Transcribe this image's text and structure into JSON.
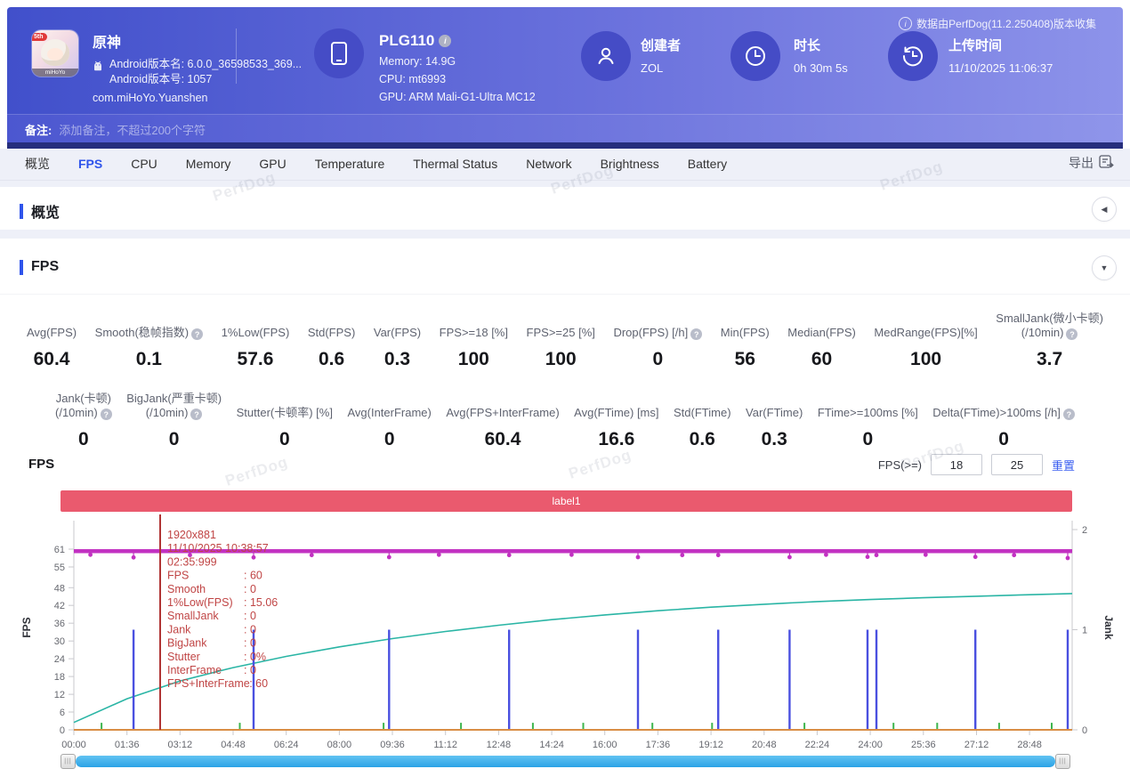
{
  "header": {
    "game": {
      "title": "原神",
      "line1": "Android版本名: 6.0.0_36598533_369...",
      "line2": "Android版本号: 1057",
      "package": "com.miHoYo.Yuanshen",
      "badge": "5th",
      "brand": "miHoYo"
    },
    "device": {
      "name": "PLG110",
      "memory": "Memory: 14.9G",
      "cpu": "CPU: mt6993",
      "gpu": "GPU: ARM Mali-G1-Ultra MC12"
    },
    "creator": {
      "label": "创建者",
      "value": "ZOL"
    },
    "duration": {
      "label": "时长",
      "value": "0h 30m 5s"
    },
    "upload": {
      "label": "上传时间",
      "value": "11/10/2025 11:06:37"
    },
    "version_note": "数据由PerfDog(11.2.250408)版本收集",
    "remark_label": "备注:",
    "remark_placeholder": "添加备注，不超过200个字符"
  },
  "tabs": {
    "items": [
      {
        "id": "overview",
        "label": "概览"
      },
      {
        "id": "fps",
        "label": "FPS"
      },
      {
        "id": "cpu",
        "label": "CPU"
      },
      {
        "id": "memory",
        "label": "Memory"
      },
      {
        "id": "gpu",
        "label": "GPU"
      },
      {
        "id": "temperature",
        "label": "Temperature"
      },
      {
        "id": "thermal-status",
        "label": "Thermal Status"
      },
      {
        "id": "network",
        "label": "Network"
      },
      {
        "id": "brightness",
        "label": "Brightness"
      },
      {
        "id": "battery",
        "label": "Battery"
      }
    ],
    "active": "fps",
    "export_label": "导出"
  },
  "sections": {
    "overview_title": "概览",
    "fps_title": "FPS"
  },
  "stats_row1": [
    {
      "l1": "Avg(FPS)",
      "l2": "",
      "help": 0,
      "value": "60.4"
    },
    {
      "l1": "Smooth(稳帧指数)",
      "l2": "",
      "help": 1,
      "value": "0.1"
    },
    {
      "l1": "1%Low(FPS)",
      "l2": "",
      "help": 0,
      "value": "57.6"
    },
    {
      "l1": "Std(FPS)",
      "l2": "",
      "help": 0,
      "value": "0.6"
    },
    {
      "l1": "Var(FPS)",
      "l2": "",
      "help": 0,
      "value": "0.3"
    },
    {
      "l1": "FPS>=18 [%]",
      "l2": "",
      "help": 0,
      "value": "100"
    },
    {
      "l1": "FPS>=25 [%]",
      "l2": "",
      "help": 0,
      "value": "100"
    },
    {
      "l1": "Drop(FPS) [/h]",
      "l2": "",
      "help": 1,
      "value": "0"
    },
    {
      "l1": "Min(FPS)",
      "l2": "",
      "help": 0,
      "value": "56"
    },
    {
      "l1": "Median(FPS)",
      "l2": "",
      "help": 0,
      "value": "60"
    },
    {
      "l1": "MedRange(FPS)[%]",
      "l2": "",
      "help": 0,
      "value": "100"
    },
    {
      "l1": "SmallJank(微小卡顿)",
      "l2": "(/10min)",
      "help": 2,
      "value": "3.7"
    }
  ],
  "stats_row2": [
    {
      "l1": "Jank(卡顿)",
      "l2": "(/10min)",
      "help": 2,
      "value": "0"
    },
    {
      "l1": "BigJank(严重卡顿)",
      "l2": "(/10min)",
      "help": 2,
      "value": "0"
    },
    {
      "l1": "Stutter(卡顿率) [%]",
      "l2": "",
      "help": 0,
      "value": "0"
    },
    {
      "l1": "Avg(InterFrame)",
      "l2": "",
      "help": 0,
      "value": "0"
    },
    {
      "l1": "Avg(FPS+InterFrame)",
      "l2": "",
      "help": 0,
      "value": "60.4"
    },
    {
      "l1": "Avg(FTime) [ms]",
      "l2": "",
      "help": 0,
      "value": "16.6"
    },
    {
      "l1": "Std(FTime)",
      "l2": "",
      "help": 0,
      "value": "0.6"
    },
    {
      "l1": "Var(FTime)",
      "l2": "",
      "help": 0,
      "value": "0.3"
    },
    {
      "l1": "FTime>=100ms [%]",
      "l2": "",
      "help": 0,
      "value": "0"
    },
    {
      "l1": "Delta(FTime)>100ms [/h]",
      "l2": "",
      "help": 1,
      "value": "0"
    }
  ],
  "chart": {
    "title": "FPS",
    "threshold_label": "FPS(>=)",
    "threshold1": "18",
    "threshold2": "25",
    "reset_label": "重置"
  },
  "chart_data": {
    "type": "line",
    "title": "FPS",
    "band": {
      "label": "label1",
      "color": "#ea5a6e"
    },
    "x_axis": {
      "labels": [
        "00:00",
        "01:36",
        "03:12",
        "04:48",
        "06:24",
        "08:00",
        "09:36",
        "11:12",
        "12:48",
        "14:24",
        "16:00",
        "17:36",
        "19:12",
        "20:48",
        "22:24",
        "24:00",
        "25:36",
        "27:12",
        "28:48"
      ],
      "step_seconds": 96,
      "total_seconds": 1805
    },
    "y_left": {
      "label": "FPS",
      "ticks": [
        61,
        55,
        48,
        42,
        36,
        30,
        24,
        18,
        12,
        6,
        0
      ],
      "max": 61
    },
    "y_right": {
      "label": "Jank",
      "ticks": [
        2,
        1,
        0
      ],
      "max": 2
    },
    "series": [
      {
        "name": "FPS",
        "color": "#c232c2",
        "type": "flat-line",
        "axis": "left",
        "value": 60.3,
        "dips": [
          {
            "t": 30,
            "v": 59.1
          },
          {
            "t": 108,
            "v": 58.2
          },
          {
            "t": 210,
            "v": 59.0
          },
          {
            "t": 325,
            "v": 58.2
          },
          {
            "t": 430,
            "v": 59.0
          },
          {
            "t": 570,
            "v": 58.3
          },
          {
            "t": 660,
            "v": 59.1
          },
          {
            "t": 787,
            "v": 59.0
          },
          {
            "t": 900,
            "v": 59.1
          },
          {
            "t": 1020,
            "v": 58.3
          },
          {
            "t": 1100,
            "v": 59.0
          },
          {
            "t": 1165,
            "v": 59.0
          },
          {
            "t": 1294,
            "v": 58.3
          },
          {
            "t": 1360,
            "v": 59.1
          },
          {
            "t": 1435,
            "v": 58.4
          },
          {
            "t": 1451,
            "v": 59.0
          },
          {
            "t": 1540,
            "v": 59.1
          },
          {
            "t": 1630,
            "v": 58.4
          },
          {
            "t": 1700,
            "v": 59.0
          },
          {
            "t": 1797,
            "v": 58.0
          }
        ]
      },
      {
        "name": "1%Low(FPS)",
        "color": "#2ab5a5",
        "type": "curve",
        "axis": "left",
        "points": [
          {
            "t": 0,
            "v": 2.5
          },
          {
            "t": 96,
            "v": 10.5
          },
          {
            "t": 192,
            "v": 16.5
          },
          {
            "t": 288,
            "v": 21.0
          },
          {
            "t": 384,
            "v": 24.8
          },
          {
            "t": 480,
            "v": 28.0
          },
          {
            "t": 576,
            "v": 30.8
          },
          {
            "t": 672,
            "v": 33.2
          },
          {
            "t": 768,
            "v": 35.3
          },
          {
            "t": 864,
            "v": 37.2
          },
          {
            "t": 960,
            "v": 38.8
          },
          {
            "t": 1056,
            "v": 40.2
          },
          {
            "t": 1152,
            "v": 41.4
          },
          {
            "t": 1248,
            "v": 42.4
          },
          {
            "t": 1344,
            "v": 43.3
          },
          {
            "t": 1440,
            "v": 44.0
          },
          {
            "t": 1536,
            "v": 44.6
          },
          {
            "t": 1632,
            "v": 45.1
          },
          {
            "t": 1728,
            "v": 45.6
          },
          {
            "t": 1805,
            "v": 46.0
          }
        ]
      },
      {
        "name": "Jank",
        "color": "#4a50e0",
        "type": "spikes",
        "axis": "right",
        "value": 1,
        "events": [
          108,
          325,
          570,
          787,
          1020,
          1165,
          1294,
          1435,
          1451,
          1630,
          1797
        ]
      },
      {
        "name": "SmallJank",
        "color": "#3db54e",
        "type": "spikes",
        "axis": "right",
        "value": 0.07,
        "events": [
          50,
          300,
          560,
          700,
          830,
          921,
          1046,
          1154,
          1321,
          1482,
          1561,
          1673,
          1768
        ]
      },
      {
        "name": "InterFrame",
        "color": "#d98e45",
        "type": "flat-line",
        "axis": "left",
        "value": 0
      }
    ],
    "cursor": {
      "t": 156,
      "color": "#b03535",
      "header_lines": [
        "1920x881",
        "11/10/2025 10:38:57",
        "02:35:999"
      ],
      "values": [
        {
          "label": "FPS",
          "value": ": 60"
        },
        {
          "label": "Smooth",
          "value": ": 0"
        },
        {
          "label": "1%Low(FPS)",
          "value": ": 15.06"
        },
        {
          "label": "SmallJank",
          "value": ": 0"
        },
        {
          "label": "Jank",
          "value": ": 0"
        },
        {
          "label": "BigJank",
          "value": ": 0"
        },
        {
          "label": "Stutter",
          "value": ": 0%"
        },
        {
          "label": "InterFrame",
          "value": ": 0"
        },
        {
          "label": "FPS+InterFrame",
          "value": ": 60"
        }
      ]
    }
  },
  "watermark": {
    "text": "PerfDog"
  }
}
